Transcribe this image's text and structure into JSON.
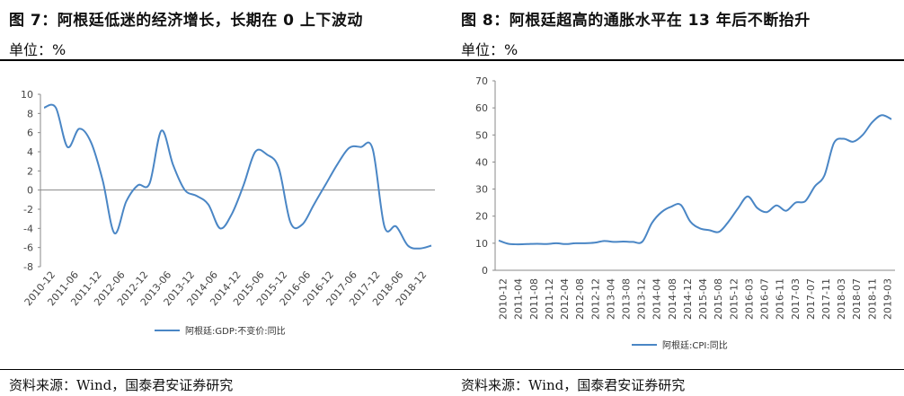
{
  "colors": {
    "line": "#4a86c5",
    "axis": "#888888",
    "text": "#444444"
  },
  "left": {
    "title": "图 7：阿根廷低迷的经济增长，长期在 0 上下波动",
    "unit": "单位：%",
    "source": "资料来源：Wind，国泰君安证券研究"
  },
  "right": {
    "title": "图 8：阿根廷超高的通胀水平在 13 年后不断抬升",
    "unit": "单位：%",
    "source": "资料来源：Wind，国泰君安证券研究"
  },
  "chart_data": [
    {
      "type": "line",
      "x_ticks": [
        "2010-12",
        "2011-06",
        "2011-12",
        "2012-06",
        "2012-12",
        "2013-06",
        "2013-12",
        "2014-06",
        "2014-12",
        "2015-06",
        "2015-12",
        "2016-06",
        "2016-12",
        "2017-06",
        "2017-12",
        "2018-06",
        "2018-12"
      ],
      "ylim": [
        -8,
        10
      ],
      "y_ticks": [
        10,
        8,
        6,
        4,
        2,
        0,
        -2,
        -4,
        -6,
        -8
      ],
      "series": [
        {
          "name": "阿根廷:GDP:不变价:同比",
          "values": [
            8.6,
            8.6,
            4.5,
            6.4,
            5.0,
            1.0,
            -4.5,
            -1.2,
            0.5,
            0.7,
            6.2,
            2.6,
            0.0,
            -0.6,
            -1.5,
            -4.0,
            -2.5,
            0.5,
            4.0,
            3.7,
            2.3,
            -3.4,
            -3.6,
            -1.5,
            0.6,
            2.7,
            4.4,
            4.5,
            4.3,
            -3.8,
            -3.8,
            -5.8,
            -6.1,
            -5.8
          ]
        }
      ]
    },
    {
      "type": "line",
      "x_ticks": [
        "2010-12",
        "2011-04",
        "2011-08",
        "2011-12",
        "2012-04",
        "2012-08",
        "2012-12",
        "2013-04",
        "2013-08",
        "2013-12",
        "2014-04",
        "2014-08",
        "2014-12",
        "2015-04",
        "2015-08",
        "2015-12",
        "2016-03",
        "2016-07",
        "2016-11",
        "2017-03",
        "2017-07",
        "2017-11",
        "2018-03",
        "2018-07",
        "2018-11",
        "2019-03"
      ],
      "ylim": [
        0,
        70
      ],
      "y_ticks": [
        70,
        60,
        50,
        40,
        30,
        20,
        10,
        0
      ],
      "series": [
        {
          "name": "阿根廷:CPI:同比",
          "values": [
            11,
            9.8,
            9.6,
            9.7,
            9.8,
            9.7,
            10.0,
            9.7,
            10.0,
            10.0,
            10.2,
            10.8,
            10.5,
            10.6,
            10.5,
            10.6,
            17.5,
            21.5,
            23.5,
            24.2,
            18.0,
            15.5,
            14.8,
            14.2,
            18.0,
            23.0,
            27.3,
            23.0,
            21.5,
            24.0,
            22.0,
            25.0,
            25.5,
            31.0,
            35.0,
            47.0,
            48.6,
            47.5,
            50.0,
            54.7,
            57.3,
            55.8
          ]
        }
      ]
    }
  ]
}
